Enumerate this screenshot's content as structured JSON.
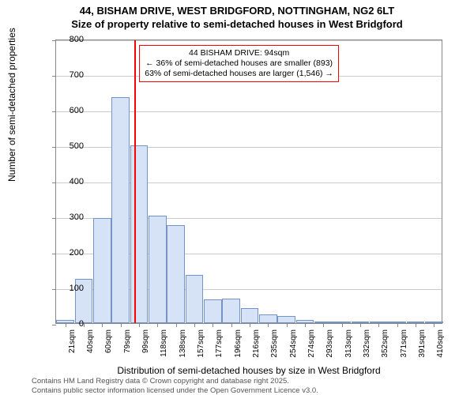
{
  "title": {
    "line1": "44, BISHAM DRIVE, WEST BRIDGFORD, NOTTINGHAM, NG2 6LT",
    "line2": "Size of property relative to semi-detached houses in West Bridgford"
  },
  "chart": {
    "type": "histogram",
    "ylabel": "Number of semi-detached properties",
    "xlabel": "Distribution of semi-detached houses by size in West Bridgford",
    "ylim": [
      0,
      800
    ],
    "ytick_step": 100,
    "bar_fill": "#d6e2f5",
    "bar_border": "#7593c6",
    "grid_color": "#cccccc",
    "axis_color": "#888888",
    "background_color": "#ffffff",
    "marker_line_color": "#ff0000",
    "marker_x_value": 94,
    "x_categories": [
      "21sqm",
      "40sqm",
      "60sqm",
      "79sqm",
      "99sqm",
      "118sqm",
      "138sqm",
      "157sqm",
      "177sqm",
      "196sqm",
      "216sqm",
      "235sqm",
      "254sqm",
      "274sqm",
      "293sqm",
      "313sqm",
      "332sqm",
      "352sqm",
      "371sqm",
      "391sqm",
      "410sqm"
    ],
    "values": [
      10,
      125,
      295,
      635,
      500,
      303,
      275,
      135,
      67,
      70,
      42,
      25,
      20,
      10,
      5,
      3,
      2,
      2,
      2,
      2,
      2
    ],
    "callout": {
      "line1": "44 BISHAM DRIVE: 94sqm",
      "line2": "← 36% of semi-detached houses are smaller (893)",
      "line3": "63% of semi-detached houses are larger (1,546) →"
    },
    "label_fontsize": 12,
    "tick_fontsize": 11,
    "title_fontsize": 13
  },
  "footer": {
    "line1": "Contains HM Land Registry data © Crown copyright and database right 2025.",
    "line2": "Contains public sector information licensed under the Open Government Licence v3.0."
  }
}
